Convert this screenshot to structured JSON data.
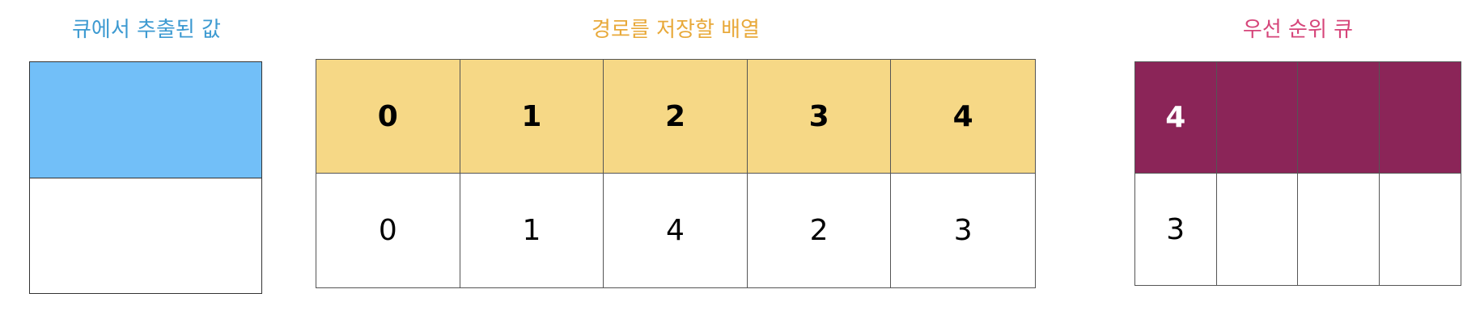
{
  "colors": {
    "queue_value_title": "#3d9ad1",
    "path_array_title": "#e8a93a",
    "priority_queue_title": "#d6457a",
    "queue_value_fill": "#72bff8",
    "path_header_fill": "#f6d886",
    "priority_header_fill": "#8b2558",
    "cell_fill": "#ffffff"
  },
  "queue_value": {
    "title": "큐에서 추출된 값",
    "value": ""
  },
  "path_array": {
    "title": "경로를 저장할 배열",
    "indices": [
      "0",
      "1",
      "2",
      "3",
      "4"
    ],
    "values": [
      "0",
      "1",
      "4",
      "2",
      "3"
    ]
  },
  "priority_queue": {
    "title": "우선 순위 큐",
    "top_row": [
      "4",
      "",
      "",
      ""
    ],
    "bottom_row": [
      "3",
      "",
      "",
      ""
    ]
  }
}
